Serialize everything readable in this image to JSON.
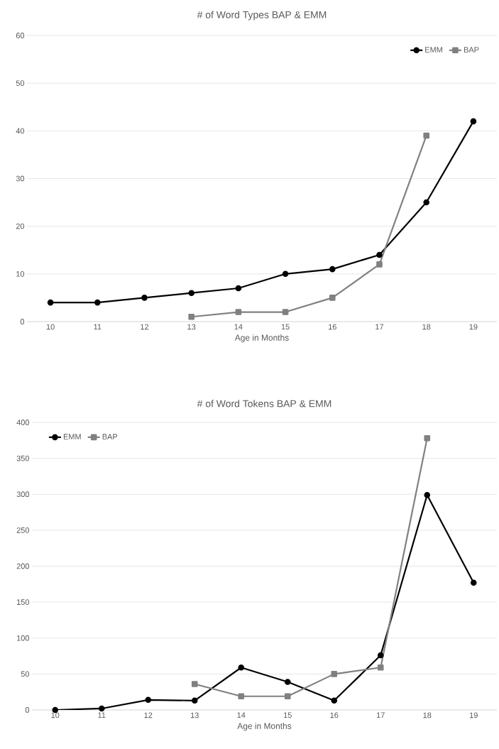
{
  "chart_data": [
    {
      "type": "line",
      "title": "# of Word Types BAP & EMM",
      "xlabel": "Age in Months",
      "categories": [
        "10",
        "11",
        "12",
        "13",
        "14",
        "15",
        "16",
        "17",
        "18",
        "19"
      ],
      "series": [
        {
          "name": "EMM",
          "color": "#000000",
          "marker": "circle",
          "values": [
            4,
            4,
            5,
            6,
            7,
            10,
            11,
            14,
            25,
            42
          ]
        },
        {
          "name": "BAP",
          "color": "#808080",
          "marker": "square",
          "values": [
            null,
            null,
            null,
            1,
            2,
            2,
            5,
            12,
            39,
            null
          ]
        }
      ],
      "ylim": [
        0,
        60
      ],
      "yticks": [
        0,
        10,
        20,
        30,
        40,
        50,
        60
      ],
      "grid": "y",
      "legend": "top right",
      "line_style": "solid"
    },
    {
      "type": "line",
      "title": "# of Word Tokens BAP & EMM",
      "xlabel": "Age in Months",
      "categories": [
        "10",
        "11",
        "12",
        "13",
        "14",
        "15",
        "16",
        "17",
        "18",
        "19"
      ],
      "series": [
        {
          "name": "EMM",
          "color": "#000000",
          "marker": "circle",
          "values": [
            0,
            2,
            14,
            13,
            59,
            39,
            13,
            76,
            299,
            177
          ]
        },
        {
          "name": "BAP",
          "color": "#808080",
          "marker": "square",
          "values": [
            null,
            null,
            null,
            36,
            19,
            19,
            50,
            59,
            378,
            null
          ]
        }
      ],
      "ylim": [
        0,
        400
      ],
      "yticks": [
        0,
        50,
        100,
        150,
        200,
        250,
        300,
        350,
        400
      ],
      "grid": "y",
      "legend": "top left",
      "line_style": "solid"
    }
  ]
}
